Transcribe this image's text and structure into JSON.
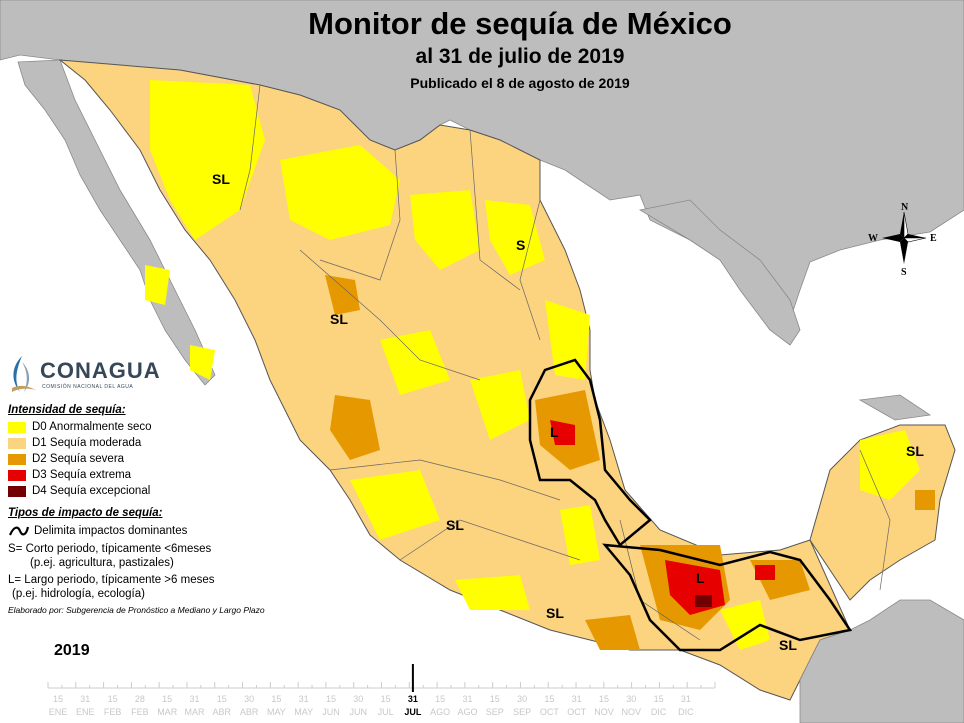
{
  "title": "Monitor de sequía de México",
  "subtitle": "al 31 de julio de 2019",
  "published": "Publicado el 8 de agosto de 2019",
  "compass": {
    "n": "N",
    "s": "S",
    "e": "E",
    "w": "W"
  },
  "logo": {
    "name": "CONAGUA",
    "tagline": "COMISIÓN NACIONAL DEL AGUA"
  },
  "map_labels": {
    "sonora_sl": "SL",
    "durango_sl": "SL",
    "coahuila_s": "S",
    "hidalgo_l": "L",
    "puebla_l": "L",
    "michoacan_sl": "SL",
    "guerrero_sl": "SL",
    "chiapas_sl": "SL",
    "yucatan_sl": "SL"
  },
  "legend": {
    "intensity_heading": "Intensidad de sequía:",
    "categories": [
      {
        "code": "D0",
        "label": "D0 Anormalmente seco",
        "color": "#ffff00"
      },
      {
        "code": "D1",
        "label": "D1 Sequía moderada",
        "color": "#fcd37f"
      },
      {
        "code": "D2",
        "label": "D2 Sequía severa",
        "color": "#e69800"
      },
      {
        "code": "D3",
        "label": "D3 Sequía extrema",
        "color": "#e60000"
      },
      {
        "code": "D4",
        "label": "D4 Sequía excepcional",
        "color": "#730000"
      }
    ],
    "impact_heading": "Tipos de impacto de sequía:",
    "impact_line_label": "Delimita impactos dominantes",
    "short_term": "S= Corto periodo, típicamente <6meses",
    "short_term_example": "(p.ej. agricultura, pastizales)",
    "long_term": "L= Largo periodo, típicamente >6 meses",
    "long_term_example": "(p.ej. hidrología, ecología)",
    "credit": "Elaborado por: Subgerencia de Pronóstico a Mediano y Largo Plazo"
  },
  "timeline": {
    "year": "2019",
    "days": [
      "15",
      "31",
      "15",
      "28",
      "15",
      "31",
      "15",
      "30",
      "15",
      "31",
      "15",
      "30",
      "15",
      "31",
      "15",
      "31",
      "15",
      "30",
      "15",
      "31",
      "15",
      "30",
      "15",
      "31"
    ],
    "months": [
      "ENE",
      "ENE",
      "FEB",
      "FEB",
      "MAR",
      "MAR",
      "ABR",
      "ABR",
      "MAY",
      "MAY",
      "JUN",
      "JUN",
      "JUL",
      "JUL",
      "AGO",
      "AGO",
      "SEP",
      "SEP",
      "OCT",
      "OCT",
      "NOV",
      "NOV",
      "DIC",
      "DIC"
    ],
    "current_index": 13
  }
}
